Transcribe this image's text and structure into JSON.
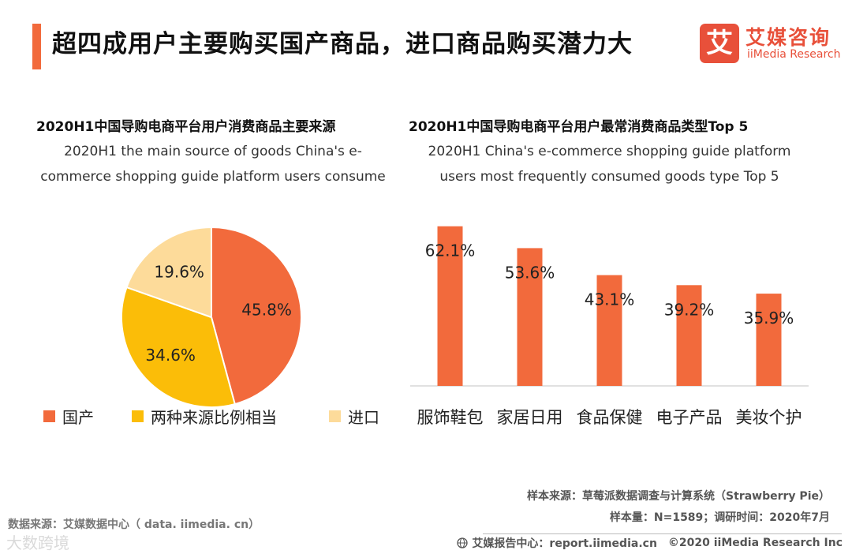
{
  "header": {
    "title": "超四成用户主要购买国产商品，进口商品购买潜力大",
    "logo_mark": "艾",
    "logo_cn": "艾媒咨询",
    "logo_en": "iiMedia Research"
  },
  "pie_section": {
    "title": "2020H1中国导购电商平台用户消费商品主要来源",
    "subtitle_line1": "2020H1 the main source of goods China's e-",
    "subtitle_line2": "commerce shopping guide platform users consume"
  },
  "bar_section": {
    "title": "2020H1中国导购电商平台用户最常消费商品类型Top 5",
    "subtitle_line1": "2020H1 China's e-commerce shopping guide platform",
    "subtitle_line2": "users most frequently consumed goods type Top 5"
  },
  "colors": {
    "accent": "#f26a3c",
    "pie_domestic": "#f26a3c",
    "pie_both": "#fbbd08",
    "pie_import": "#fddb9a",
    "bar": "#f26a3c"
  },
  "chart_data": [
    {
      "type": "pie",
      "title": "2020H1中国导购电商平台用户消费商品主要来源",
      "slices": [
        {
          "label": "国产",
          "value": 45.8,
          "value_label": "45.8%"
        },
        {
          "label": "两种来源比例相当",
          "value": 34.6,
          "value_label": "34.6%"
        },
        {
          "label": "进口",
          "value": 19.6,
          "value_label": "19.6%"
        }
      ],
      "legend": "bottom"
    },
    {
      "type": "bar",
      "title": "2020H1中国导购电商平台用户最常消费商品类型Top 5",
      "categories": [
        "服饰鞋包",
        "家居日用",
        "食品保健",
        "电子产品",
        "美妆个护"
      ],
      "values": [
        62.1,
        53.6,
        43.1,
        39.2,
        35.9
      ],
      "value_labels": [
        "62.1%",
        "53.6%",
        "43.1%",
        "39.2%",
        "35.9%"
      ],
      "ylim": [
        0,
        70
      ],
      "xlabel": "",
      "ylabel": ""
    }
  ],
  "source": {
    "sample_source": "样本来源：草莓派数据调查与计算系统（Strawberry Pie）",
    "sample_size": "样本量：N=1589；调研时间：2020年7月",
    "data_source": "数据来源：艾媒数据中心（ data. iimedia. cn）",
    "watermark": "大数跨境",
    "footer_center": "艾媒报告中心：report.iimedia.cn",
    "footer_copyright": "©2020  iiMedia Research  Inc"
  }
}
